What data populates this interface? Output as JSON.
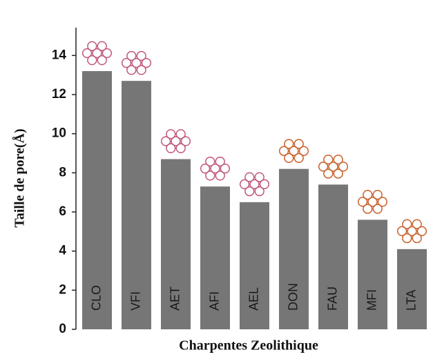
{
  "chart_data": {
    "type": "bar",
    "x_label": "Charpentes Zeolithique",
    "y_label": "Taille de pore(Å)",
    "categories": [
      "CLO",
      "VFI",
      "AET",
      "AFI",
      "AEL",
      "DON",
      "FAU",
      "MFI",
      "LTA"
    ],
    "values": [
      13.2,
      12.7,
      8.7,
      7.3,
      6.5,
      8.2,
      7.4,
      5.6,
      4.1
    ],
    "color": "#767676",
    "ylim": [
      0,
      15
    ],
    "yticks": [
      0,
      2,
      4,
      6,
      8,
      10,
      12,
      14
    ],
    "grid": false
  }
}
